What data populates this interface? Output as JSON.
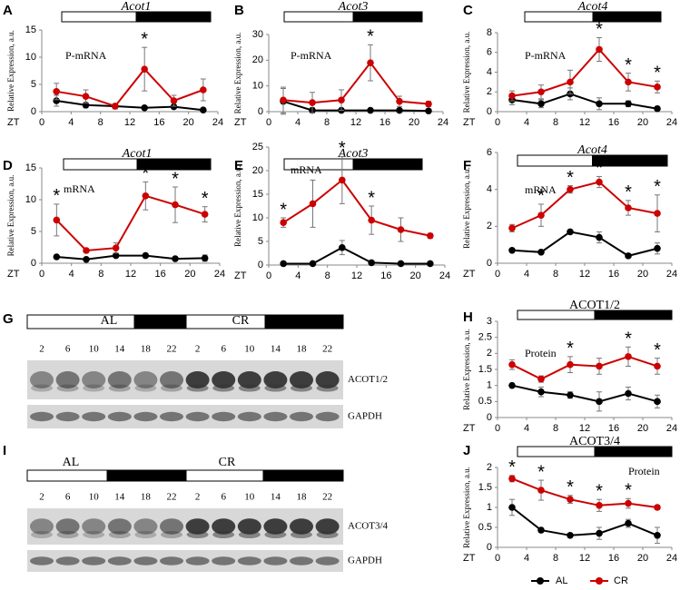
{
  "chart_data": [
    {
      "type": "line",
      "panel": "A",
      "title": "Acot1",
      "label": "P-mRNA",
      "ylabel": "Relative Expression, a.u.",
      "xlabel": "ZT",
      "x": [
        2,
        6,
        10,
        14,
        18,
        22
      ],
      "xlim": [
        0,
        24
      ],
      "xticks": [
        0,
        4,
        8,
        12,
        16,
        20,
        24
      ],
      "ylim": [
        0,
        15
      ],
      "yticks": [
        0,
        5,
        10,
        15
      ],
      "series": [
        {
          "name": "AL",
          "color": "#000000",
          "values": [
            2.0,
            1.2,
            1.0,
            0.7,
            0.9,
            0.3
          ],
          "errors": [
            1.0,
            0.5,
            0.3,
            0.2,
            0.3,
            0.2
          ]
        },
        {
          "name": "CR",
          "color": "#cc0000",
          "values": [
            3.7,
            2.8,
            1.0,
            7.8,
            2.0,
            4.0
          ],
          "errors": [
            1.5,
            1.2,
            0.5,
            4.0,
            1.0,
            2.0
          ]
        }
      ],
      "annotations": [
        {
          "text": "*",
          "x": 14
        }
      ]
    },
    {
      "type": "line",
      "panel": "B",
      "title": "Acot3",
      "label": "P-mRNA",
      "ylabel": "Relative Expression, a.u.",
      "xlabel": "ZT",
      "x": [
        2,
        6,
        10,
        14,
        18,
        22
      ],
      "xlim": [
        0,
        24
      ],
      "xticks": [
        0,
        4,
        8,
        12,
        16,
        20,
        24
      ],
      "ylim": [
        0,
        30
      ],
      "yticks": [
        0,
        10,
        20,
        30
      ],
      "series": [
        {
          "name": "AL",
          "color": "#000000",
          "values": [
            4.0,
            0.5,
            0.5,
            0.5,
            0.5,
            0.3
          ],
          "errors": [
            5.0,
            1.0,
            0.5,
            0.5,
            0.5,
            0.3
          ]
        },
        {
          "name": "CR",
          "color": "#cc0000",
          "values": [
            4.5,
            3.5,
            4.5,
            19.0,
            4.0,
            3.0
          ],
          "errors": [
            5.0,
            4.0,
            4.0,
            7.0,
            2.0,
            1.0
          ]
        }
      ],
      "annotations": [
        {
          "text": "*",
          "x": 14
        }
      ]
    },
    {
      "type": "line",
      "panel": "C",
      "title": "Acot4",
      "label": "P-mRNA",
      "ylabel": "Relative Expression, a.u.",
      "xlabel": "ZT",
      "x": [
        2,
        6,
        10,
        14,
        18,
        22
      ],
      "xlim": [
        0,
        24
      ],
      "xticks": [
        0,
        4,
        8,
        12,
        16,
        20,
        24
      ],
      "ylim": [
        0,
        8
      ],
      "yticks": [
        0,
        2,
        4,
        6,
        8
      ],
      "series": [
        {
          "name": "AL",
          "color": "#000000",
          "values": [
            1.2,
            0.8,
            1.8,
            0.8,
            0.8,
            0.3
          ],
          "errors": [
            0.5,
            0.4,
            0.6,
            0.6,
            0.3,
            0.2
          ]
        },
        {
          "name": "CR",
          "color": "#cc0000",
          "values": [
            1.6,
            2.0,
            3.0,
            6.3,
            3.0,
            2.5
          ],
          "errors": [
            0.5,
            0.7,
            1.2,
            1.2,
            0.9,
            0.6
          ]
        }
      ],
      "annotations": [
        {
          "text": "*",
          "x": 14
        },
        {
          "text": "*",
          "x": 18
        },
        {
          "text": "*",
          "x": 22
        }
      ]
    },
    {
      "type": "line",
      "panel": "D",
      "title": "Acot1",
      "label": "mRNA",
      "ylabel": "Relative Expression, a.u.",
      "xlabel": "ZT",
      "x": [
        2,
        6,
        10,
        14,
        18,
        22
      ],
      "xlim": [
        0,
        24
      ],
      "xticks": [
        0,
        4,
        8,
        12,
        16,
        20,
        24
      ],
      "ylim": [
        0,
        15
      ],
      "yticks": [
        0,
        5,
        10,
        15
      ],
      "series": [
        {
          "name": "AL",
          "color": "#000000",
          "values": [
            1.0,
            0.6,
            1.2,
            1.2,
            0.7,
            0.8
          ],
          "errors": [
            0.2,
            0.2,
            0.3,
            0.3,
            0.2,
            0.5
          ]
        },
        {
          "name": "CR",
          "color": "#cc0000",
          "values": [
            6.8,
            2.0,
            2.4,
            10.6,
            9.2,
            7.7
          ],
          "errors": [
            2.5,
            0.3,
            0.8,
            2.2,
            2.8,
            1.2
          ]
        }
      ],
      "annotations": [
        {
          "text": "*",
          "x": 2
        },
        {
          "text": "*",
          "x": 14
        },
        {
          "text": "*",
          "x": 18
        },
        {
          "text": "*",
          "x": 22
        }
      ]
    },
    {
      "type": "line",
      "panel": "E",
      "title": "Acot3",
      "label": "mRNA",
      "ylabel": "Relative Expression, a.u.",
      "xlabel": "ZT",
      "x": [
        2,
        6,
        10,
        14,
        18,
        22
      ],
      "xlim": [
        0,
        24
      ],
      "xticks": [
        0,
        4,
        8,
        12,
        16,
        20,
        24
      ],
      "ylim": [
        0,
        25
      ],
      "yticks": [
        0,
        5,
        10,
        15,
        20,
        25
      ],
      "series": [
        {
          "name": "AL",
          "color": "#000000",
          "values": [
            0.3,
            0.3,
            3.7,
            0.5,
            0.3,
            0.3
          ],
          "errors": [
            0.3,
            0.3,
            1.5,
            0.3,
            0.3,
            0.2
          ]
        },
        {
          "name": "CR",
          "color": "#cc0000",
          "values": [
            9.0,
            13.0,
            18.0,
            9.5,
            7.5,
            6.2
          ],
          "errors": [
            1.0,
            5.0,
            5.0,
            3.0,
            2.5,
            0.5
          ]
        }
      ],
      "annotations": [
        {
          "text": "*",
          "x": 2
        },
        {
          "text": "*",
          "x": 10
        },
        {
          "text": "*",
          "x": 14
        }
      ]
    },
    {
      "type": "line",
      "panel": "F",
      "title": "Acot4",
      "label": "mRNA",
      "ylabel": "Relative Expression, a.u.",
      "xlabel": "ZT",
      "x": [
        2,
        6,
        10,
        14,
        18,
        22
      ],
      "xlim": [
        0,
        24
      ],
      "xticks": [
        0,
        4,
        8,
        12,
        16,
        20,
        24
      ],
      "ylim": [
        0,
        6
      ],
      "yticks": [
        0,
        2,
        4,
        6
      ],
      "series": [
        {
          "name": "AL",
          "color": "#000000",
          "values": [
            0.7,
            0.6,
            1.7,
            1.4,
            0.4,
            0.8
          ],
          "errors": [
            0.1,
            0.1,
            0.1,
            0.3,
            0.1,
            0.3
          ]
        },
        {
          "name": "CR",
          "color": "#cc0000",
          "values": [
            1.9,
            2.6,
            4.0,
            4.4,
            3.0,
            2.7
          ],
          "errors": [
            0.2,
            0.6,
            0.2,
            0.3,
            0.4,
            1.0
          ]
        }
      ],
      "annotations": [
        {
          "text": "*",
          "x": 6
        },
        {
          "text": "*",
          "x": 10
        },
        {
          "text": "*",
          "x": 14
        },
        {
          "text": "*",
          "x": 18
        },
        {
          "text": "*",
          "x": 22
        }
      ]
    },
    {
      "type": "line",
      "panel": "H",
      "title": "ACOT1/2",
      "label": "Protein",
      "ylabel": "Relative Expression, a.u.",
      "xlabel": "ZT",
      "x": [
        2,
        6,
        10,
        14,
        18,
        22
      ],
      "xlim": [
        0,
        24
      ],
      "xticks": [
        0,
        4,
        8,
        12,
        16,
        20,
        24
      ],
      "ylim": [
        0,
        3
      ],
      "yticks": [
        0,
        0.5,
        1,
        1.5,
        2,
        2.5,
        3
      ],
      "series": [
        {
          "name": "AL",
          "color": "#000000",
          "values": [
            1.0,
            0.8,
            0.7,
            0.5,
            0.75,
            0.5
          ],
          "errors": [
            0.05,
            0.15,
            0.1,
            0.3,
            0.2,
            0.2
          ]
        },
        {
          "name": "CR",
          "color": "#cc0000",
          "values": [
            1.65,
            1.2,
            1.65,
            1.6,
            1.9,
            1.6
          ],
          "errors": [
            0.15,
            0.1,
            0.25,
            0.25,
            0.3,
            0.25
          ]
        }
      ],
      "annotations": [
        {
          "text": "*",
          "x": 10
        },
        {
          "text": "*",
          "x": 18
        },
        {
          "text": "*",
          "x": 22
        }
      ]
    },
    {
      "type": "line",
      "panel": "J",
      "title": "ACOT3/4",
      "label": "Protein",
      "ylabel": "Relative Expression, a.u.",
      "xlabel": "ZT",
      "x": [
        2,
        6,
        10,
        14,
        18,
        22
      ],
      "xlim": [
        0,
        24
      ],
      "xticks": [
        0,
        4,
        8,
        12,
        16,
        20,
        24
      ],
      "ylim": [
        0,
        2
      ],
      "yticks": [
        0,
        0.5,
        1,
        1.5,
        2
      ],
      "series": [
        {
          "name": "AL",
          "color": "#000000",
          "values": [
            1.0,
            0.43,
            0.3,
            0.35,
            0.6,
            0.3
          ],
          "errors": [
            0.2,
            0.05,
            0.05,
            0.15,
            0.1,
            0.2
          ]
        },
        {
          "name": "CR",
          "color": "#cc0000",
          "values": [
            1.72,
            1.43,
            1.2,
            1.05,
            1.1,
            1.0
          ],
          "errors": [
            0.08,
            0.25,
            0.1,
            0.15,
            0.12,
            0.05
          ]
        }
      ],
      "annotations": [
        {
          "text": "*",
          "x": 2
        },
        {
          "text": "*",
          "x": 6
        },
        {
          "text": "*",
          "x": 10
        },
        {
          "text": "*",
          "x": 14
        },
        {
          "text": "*",
          "x": 18
        }
      ]
    }
  ],
  "blots": [
    {
      "panel": "G",
      "groups": [
        "AL",
        "CR"
      ],
      "lanes": [
        2,
        6,
        10,
        14,
        18,
        22,
        2,
        6,
        10,
        14,
        18,
        22
      ],
      "bands": [
        "ACOT1/2",
        "GAPDH"
      ]
    },
    {
      "panel": "I",
      "groups": [
        "AL",
        "CR"
      ],
      "lanes": [
        2,
        6,
        10,
        14,
        18,
        22,
        2,
        6,
        10,
        14,
        18,
        22
      ],
      "bands": [
        "ACOT3/4",
        "GAPDH"
      ]
    }
  ]
}
